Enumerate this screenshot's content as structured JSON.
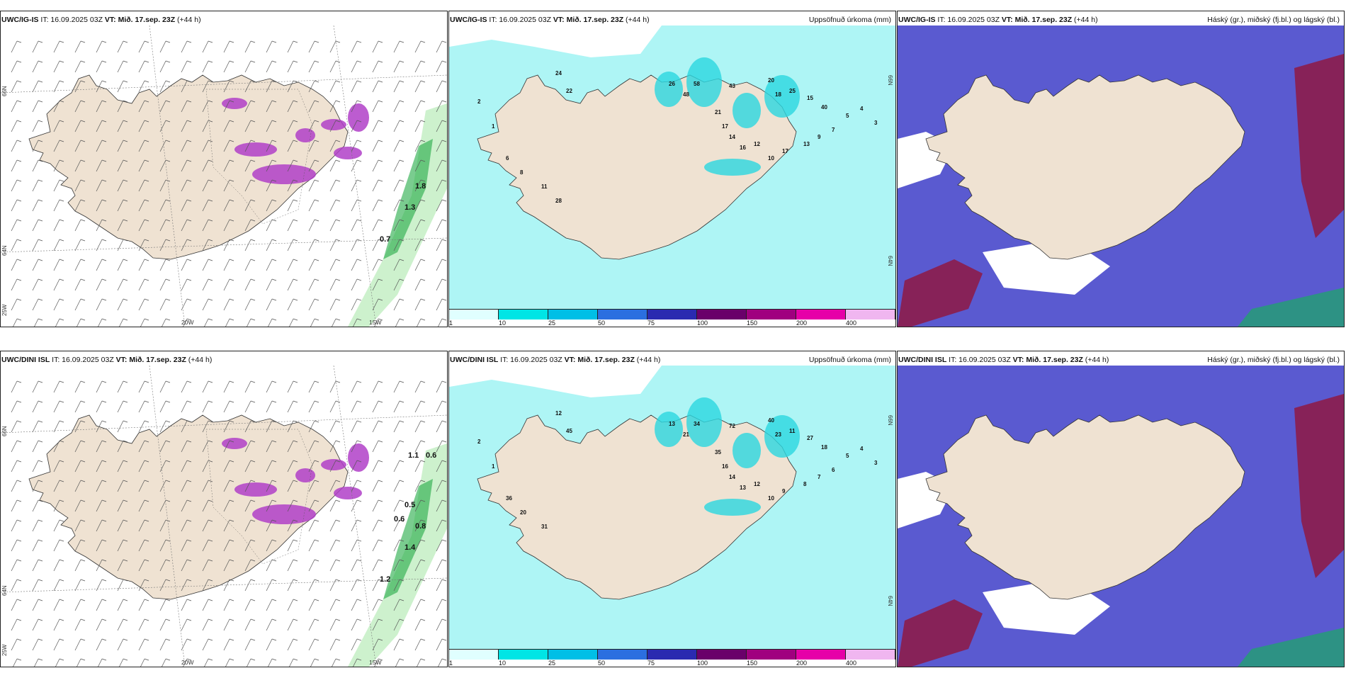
{
  "panels": [
    {
      "model": "UWC/IG-IS",
      "it": "IT: 16.09.2025 03Z",
      "vt_label": "VT:",
      "vt": "Mið. 17.sep. 23Z",
      "lead": "(+44 h)",
      "right_title": "",
      "map_type": "wind-snow",
      "lat_labels": [
        "66N",
        "64N",
        "25W"
      ],
      "lon_labels": [
        "20W",
        "15W"
      ],
      "value_labels": [
        "1.8",
        "1.3",
        "0.7"
      ]
    },
    {
      "model": "UWC/IG-IS",
      "it": "IT: 16.09.2025 03Z",
      "vt_label": "VT:",
      "vt": "Mið. 17.sep. 23Z",
      "lead": "(+44 h)",
      "right_title": "Uppsöfnuð úrkoma (mm)",
      "map_type": "precip",
      "lat_labels": [
        "66N",
        "64N"
      ],
      "value_labels": [
        "24",
        "22",
        "26",
        "48",
        "58",
        "43",
        "20",
        "18",
        "25",
        "15",
        "40",
        "21",
        "17",
        "14",
        "16",
        "12",
        "10",
        "17",
        "13",
        "9",
        "7",
        "5",
        "4",
        "3",
        "2",
        "1",
        "6",
        "8",
        "11",
        "28"
      ]
    },
    {
      "model": "UWC/IG-IS",
      "it": "IT: 16.09.2025 03Z",
      "vt_label": "VT:",
      "vt": "Mið. 17.sep. 23Z",
      "lead": "(+44 h)",
      "right_title": "Háský (gr.), miðský (fj.bl.) og lágský (bl.)",
      "map_type": "cloud"
    },
    {
      "model": "UWC/DINI ISL",
      "it": "IT: 16.09.2025 03Z",
      "vt_label": "VT:",
      "vt": "Mið. 17.sep. 23Z",
      "lead": "(+44 h)",
      "right_title": "",
      "map_type": "wind-snow",
      "lat_labels": [
        "66N",
        "64N",
        "25W"
      ],
      "lon_labels": [
        "20W",
        "15W"
      ],
      "value_labels": [
        "0.8",
        "1.4",
        "1.2",
        "1.1",
        "0.6",
        "0.5",
        "0.6"
      ]
    },
    {
      "model": "UWC/DINI ISL",
      "it": "IT: 16.09.2025 03Z",
      "vt_label": "VT:",
      "vt": "Mið. 17.sep. 23Z",
      "lead": "(+44 h)",
      "right_title": "Uppsöfnuð úrkoma (mm)",
      "map_type": "precip",
      "lat_labels": [
        "66N",
        "64N"
      ],
      "value_labels": [
        "12",
        "45",
        "13",
        "21",
        "34",
        "72",
        "40",
        "23",
        "11",
        "27",
        "18",
        "35",
        "16",
        "14",
        "13",
        "12",
        "10",
        "9",
        "8",
        "7",
        "6",
        "5",
        "4",
        "3",
        "2",
        "1",
        "36",
        "20",
        "31"
      ]
    },
    {
      "model": "UWC/DINI ISL",
      "it": "IT: 16.09.2025 03Z",
      "vt_label": "VT:",
      "vt": "Mið. 17.sep. 23Z",
      "lead": "(+44 h)",
      "right_title": "Háský (gr.), miðský (fj.bl.) og lágský (bl.)",
      "map_type": "cloud"
    }
  ],
  "precip_legend": {
    "ticks": [
      "1",
      "10",
      "25",
      "50",
      "75",
      "100",
      "150",
      "200",
      "400"
    ],
    "colors": [
      "#e0ffff",
      "#00e5e5",
      "#00bfe6",
      "#2b6fe0",
      "#2a2ab0",
      "#6a006a",
      "#a0007f",
      "#e600a8",
      "#f0b6f0"
    ]
  },
  "colors": {
    "land": "#efe2d2",
    "sea": "#ffffff",
    "precip_light": "#aef5f5",
    "precip_mid": "#2ad7e0",
    "snow_magenta": "#b040c8",
    "wind_green": "#22aa44",
    "cloud_high": "#5a5ad0",
    "cloud_mid": "#8c1c4a",
    "cloud_low": "#22a070"
  }
}
